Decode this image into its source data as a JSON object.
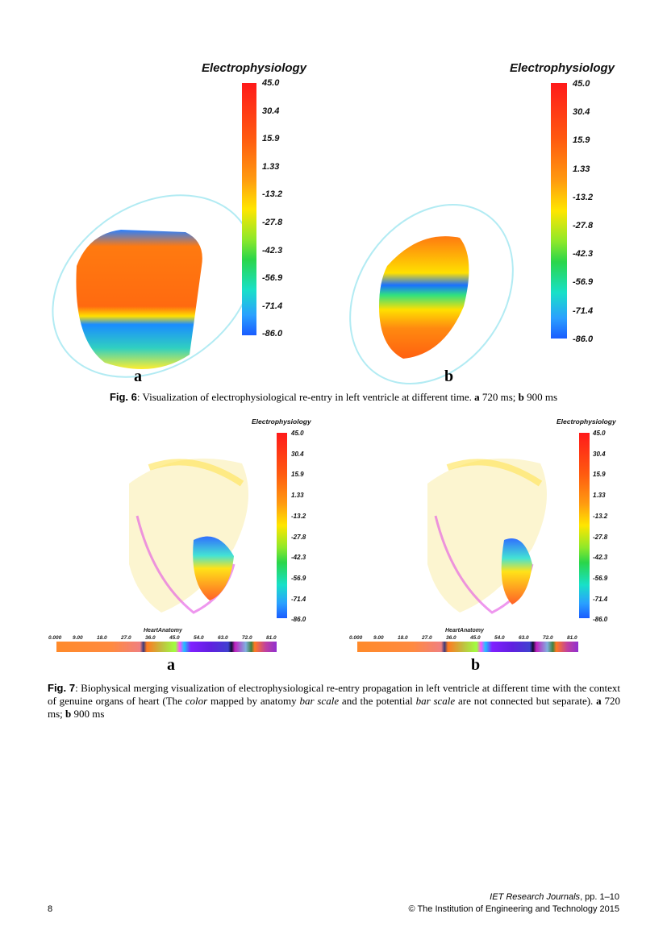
{
  "colorbar": {
    "title": "Electrophysiology",
    "ticks": [
      "45.0",
      "30.4",
      "15.9",
      "1.33",
      "-13.2",
      "-27.8",
      "-42.3",
      "-56.9",
      "-71.4",
      "-86.0"
    ],
    "colors": [
      "#ff1a1a",
      "#ff9a10",
      "#ffe600",
      "#2ad64a",
      "#18e0c8",
      "#1a5cff"
    ]
  },
  "anatomy_bar": {
    "title": "HeartAnatomy",
    "ticks": [
      "0.000",
      "9.00",
      "18.0",
      "27.0",
      "36.0",
      "45.0",
      "54.0",
      "63.0",
      "72.0",
      "81.0"
    ]
  },
  "fig6": {
    "panel_a": "a",
    "panel_b": "b",
    "caption": {
      "fig_label": "Fig. 6",
      "text": ": Visualization of electrophysiological re-entry in left ventricle at different time. ",
      "a_label": "a",
      "a_text": " 720 ms; ",
      "b_label": "b",
      "b_text": " 900 ms"
    }
  },
  "fig7": {
    "panel_a": "a",
    "panel_b": "b",
    "caption": {
      "fig_label": "Fig. 7",
      "text1": ": Biophysical merging visualization of electrophysiological re-entry propagation in left ventricle at different time with the context of genuine organs of heart (The ",
      "em1": "color",
      "text2": " mapped by anatomy ",
      "em2": "bar scale",
      "text3": " and the potential ",
      "em3": "bar scale",
      "text4": " are not connected but separate). ",
      "a_label": "a",
      "a_text": " 720 ms; ",
      "b_label": "b",
      "b_text": " 900 ms"
    }
  },
  "footer": {
    "page_number": "8",
    "journal": "IET Research Journals",
    "pages": ", pp. 1–10",
    "copyright": "© The Institution of Engineering and Technology 2015"
  }
}
